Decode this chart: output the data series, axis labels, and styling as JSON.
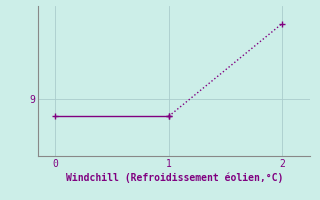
{
  "x": [
    0,
    1,
    2
  ],
  "y": [
    8.8,
    8.8,
    9.85
  ],
  "line_color": "#800080",
  "marker_color": "#800080",
  "bg_color": "#cceee8",
  "grid_color": "#aacccc",
  "axis_color": "#888888",
  "tick_label_color": "#800080",
  "xlabel": "Windchill (Refroidissement éolien,°C)",
  "xlabel_color": "#800080",
  "xlim": [
    -0.15,
    2.25
  ],
  "ylim": [
    8.35,
    10.05
  ],
  "xticks": [
    0,
    1,
    2
  ],
  "yticks": [
    9
  ],
  "figsize": [
    3.2,
    2.0
  ],
  "dpi": 100
}
